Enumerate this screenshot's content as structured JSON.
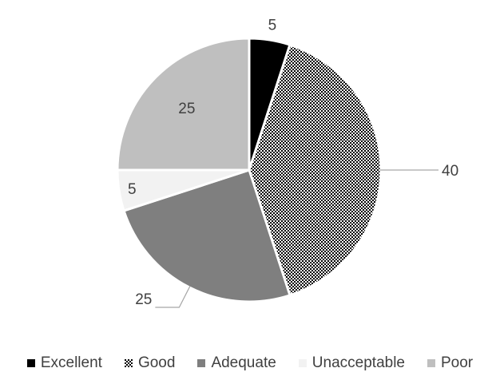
{
  "chart_data": {
    "type": "pie",
    "categories": [
      "Excellent",
      "Good",
      "Adequate",
      "Unacceptable",
      "Poor"
    ],
    "values": [
      5,
      40,
      25,
      5,
      25
    ],
    "data_labels": [
      "5",
      "40",
      "25",
      "5",
      "25"
    ],
    "colors": [
      "#000000",
      "pattern-checker",
      "#7f7f7f",
      "#f2f2f2",
      "#bfbfbf"
    ],
    "legend_position": "bottom",
    "start_angle_deg": 0,
    "direction": "clockwise"
  }
}
